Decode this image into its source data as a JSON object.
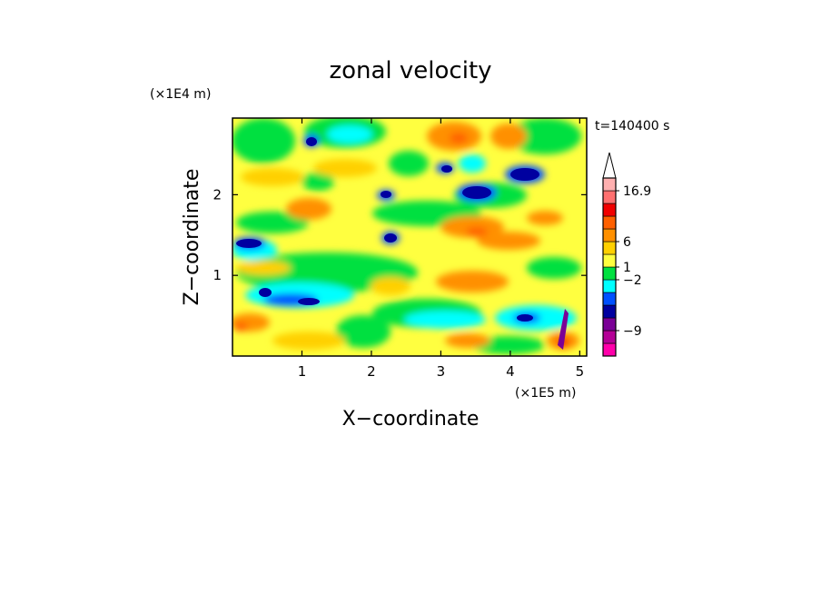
{
  "chart_data": {
    "type": "heatmap",
    "title": "zonal velocity",
    "xlabel": "X−coordinate",
    "ylabel": "Z−coordinate",
    "x_unit": "(×1E5 m)",
    "y_unit": "(×1E4 m)",
    "time_label": "t=140400 s",
    "xlim": [
      0,
      5.1
    ],
    "ylim": [
      0,
      2.95
    ],
    "x_ticks": [
      1,
      2,
      3,
      4,
      5
    ],
    "y_ticks": [
      1,
      2
    ],
    "x_tick_labels": [
      "1",
      "2",
      "3",
      "4",
      "5"
    ],
    "y_tick_labels": [
      "1",
      "2"
    ],
    "colorbar": {
      "levels_bottom_to_top": [
        "#ff00aa",
        "#b40096",
        "#7a0096",
        "#0000a0",
        "#0050ff",
        "#00ffff",
        "#00e040",
        "#ffff40",
        "#ffd000",
        "#ff9000",
        "#ff6000",
        "#f00000",
        "#ff7070",
        "#ffb0b0"
      ],
      "labels": [
        "16.9",
        "6",
        "1",
        "−2",
        "−9"
      ],
      "label_values": [
        16.9,
        6,
        1,
        -2,
        -9
      ]
    }
  }
}
